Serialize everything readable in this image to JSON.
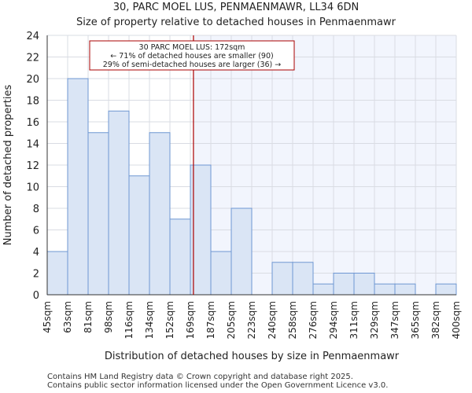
{
  "titles": {
    "line1": "30, PARC MOEL LUS, PENMAENMAWR, LL34 6DN",
    "line2": "Size of property relative to detached houses in Penmaenmawr"
  },
  "footer": {
    "line1": "Contains HM Land Registry data © Crown copyright and database right 2025.",
    "line2": "Contains public sector information licensed under the Open Government Licence v3.0."
  },
  "chart_data": {
    "type": "bar",
    "title": "30, PARC MOEL LUS, PENMAENMAWR, LL34 6DN",
    "subtitle": "Size of property relative to detached houses in Penmaenmawr",
    "xlabel": "Distribution of detached houses by size in Penmaenmawr",
    "ylabel": "Number of detached properties",
    "bin_edges": [
      "45sqm",
      "63sqm",
      "81sqm",
      "98sqm",
      "116sqm",
      "134sqm",
      "152sqm",
      "169sqm",
      "187sqm",
      "205sqm",
      "223sqm",
      "240sqm",
      "258sqm",
      "276sqm",
      "294sqm",
      "311sqm",
      "329sqm",
      "347sqm",
      "365sqm",
      "382sqm",
      "400sqm"
    ],
    "values": [
      4,
      20,
      15,
      17,
      11,
      15,
      7,
      12,
      4,
      8,
      0,
      3,
      3,
      1,
      2,
      2,
      1,
      1,
      0,
      1
    ],
    "ylim": [
      0,
      24
    ],
    "yticks": [
      0,
      2,
      4,
      6,
      8,
      10,
      12,
      14,
      16,
      18,
      20,
      22,
      24
    ],
    "grid": true,
    "marker": {
      "value_sqm": 172,
      "bin_position": 7.15,
      "label_line1": "30 PARC MOEL LUS: 172sqm",
      "label_line2": "← 71% of detached houses are smaller (90)",
      "label_line3": "29% of semi-detached houses are larger (36) →",
      "color": "#aa0000"
    },
    "colors": {
      "bar_fill": "#dae5f5",
      "bar_stroke": "#6f97d2",
      "highlight_region": "#f2f5fd",
      "grid": "#d9dce3",
      "axis": "#333333"
    }
  }
}
